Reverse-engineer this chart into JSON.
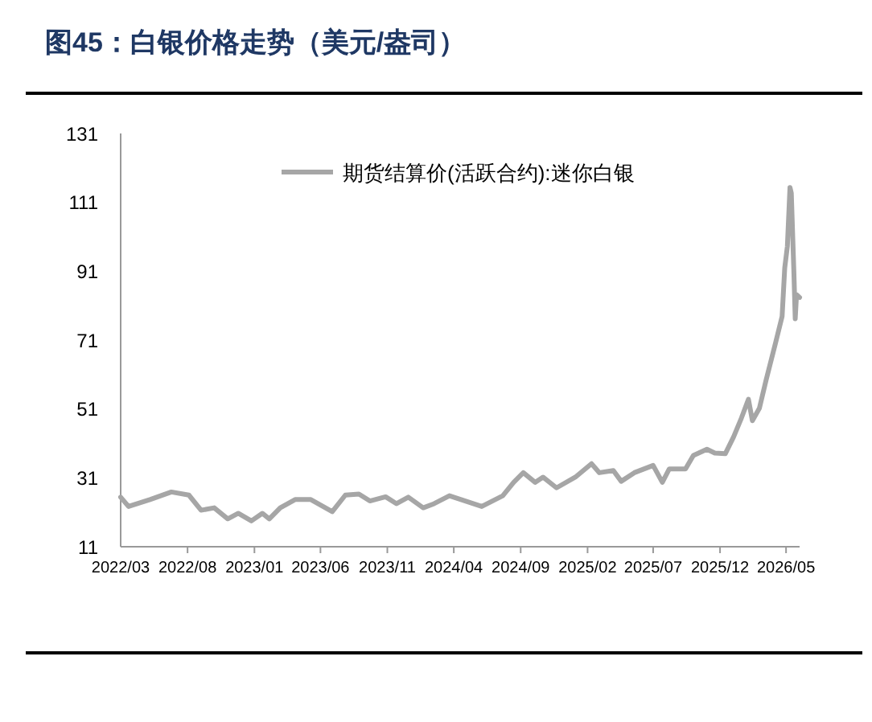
{
  "chart_data": {
    "type": "line",
    "title": "图45：白银价格走势（美元/盎司）",
    "x": [
      "2022-03-01",
      "2022-03-19",
      "2022-05-07",
      "2022-06-25",
      "2022-08-04",
      "2022-09-01",
      "2022-10-01",
      "2022-11-01",
      "2022-11-25",
      "2022-12-25",
      "2023-01-19",
      "2023-02-04",
      "2023-03-01",
      "2023-04-04",
      "2023-05-10",
      "2023-06-28",
      "2023-07-28",
      "2023-08-28",
      "2023-09-22",
      "2023-10-28",
      "2023-11-22",
      "2023-12-19",
      "2024-01-22",
      "2024-02-16",
      "2024-03-22",
      "2024-06-04",
      "2024-07-22",
      "2024-08-16",
      "2024-09-07",
      "2024-10-04",
      "2024-10-22",
      "2024-11-22",
      "2025-01-04",
      "2025-02-10",
      "2025-02-28",
      "2025-04-01",
      "2025-04-19",
      "2025-05-19",
      "2025-07-01",
      "2025-07-22",
      "2025-08-07",
      "2025-09-13",
      "2025-10-01",
      "2025-11-01",
      "2025-11-19",
      "2025-12-13",
      "2026-01-01",
      "2026-01-19",
      "2026-02-04",
      "2026-02-13",
      "2026-03-01",
      "2026-03-16",
      "2026-04-07",
      "2026-04-22",
      "2026-04-28",
      "2026-05-04",
      "2026-05-10",
      "2026-05-13",
      "2026-05-19",
      "2026-05-22",
      "2026-05-25",
      "2026-06-01"
    ],
    "series": [
      {
        "name": "期货结算价(活跃合约):迷你白银",
        "color": "#a6a6a6",
        "values": [
          25.4,
          22.7,
          24.7,
          26.9,
          26.0,
          21.6,
          22.3,
          19.1,
          20.7,
          18.5,
          20.7,
          19.1,
          22.3,
          24.7,
          24.7,
          21.2,
          26.0,
          26.3,
          24.3,
          25.5,
          23.5,
          25.4,
          22.3,
          23.5,
          25.8,
          22.7,
          25.8,
          29.7,
          32.5,
          29.7,
          31.2,
          28.1,
          31.2,
          35.1,
          32.5,
          33.1,
          30.0,
          32.5,
          34.6,
          29.7,
          33.6,
          33.6,
          37.5,
          39.3,
          38.2,
          38.0,
          42.9,
          48.4,
          53.8,
          47.6,
          51.2,
          59.2,
          70.2,
          77.9,
          92.0,
          98.2,
          115.3,
          113.7,
          90.4,
          77.2,
          84.2,
          83.4
        ]
      }
    ],
    "xlim": [
      "2022-03-01",
      "2026-06-01"
    ],
    "xticks": [
      {
        "value": "2022-03",
        "label": "2022/03"
      },
      {
        "value": "2022-08",
        "label": "2022/08"
      },
      {
        "value": "2023-01",
        "label": "2023/01"
      },
      {
        "value": "2023-06",
        "label": "2023/06"
      },
      {
        "value": "2023-11",
        "label": "2023/11"
      },
      {
        "value": "2024-04",
        "label": "2024/04"
      },
      {
        "value": "2024-09",
        "label": "2024/09"
      },
      {
        "value": "2025-02",
        "label": "2025/02"
      },
      {
        "value": "2025-07",
        "label": "2025/07"
      },
      {
        "value": "2025-12",
        "label": "2025/12"
      },
      {
        "value": "2026-05",
        "label": "2026/05"
      }
    ],
    "ylim": [
      11,
      131
    ],
    "yticks": [
      11,
      31,
      51,
      71,
      91,
      111,
      131
    ],
    "legend": "top right",
    "grid": false,
    "line_style": "solid"
  }
}
